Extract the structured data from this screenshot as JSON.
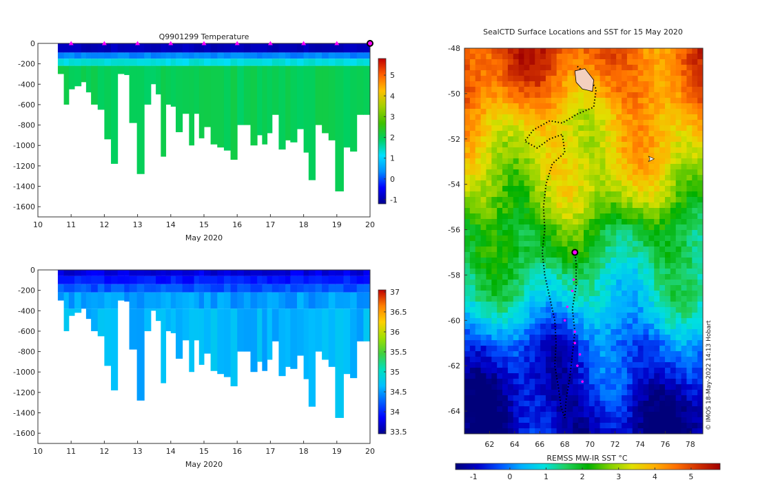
{
  "colors": {
    "jet": [
      "#00008f",
      "#0000ff",
      "#0080ff",
      "#00ffff",
      "#80ff80",
      "#ffff00",
      "#ff8000",
      "#ff0000",
      "#800000"
    ],
    "temp_jet": [
      "#00008f",
      "#0000ff",
      "#0090ff",
      "#00e0ff",
      "#00d060",
      "#40c000",
      "#a0d000",
      "#ffc000",
      "#ff6000",
      "#c00000"
    ],
    "sal_jet": [
      "#00008f",
      "#0000ff",
      "#0060ff",
      "#00c0ff",
      "#00e0c0",
      "#40d040",
      "#a0e000",
      "#ffd000",
      "#ff8000",
      "#c00000"
    ],
    "sst": [
      "#00007a",
      "#0000c8",
      "#0050ff",
      "#00b0ff",
      "#00e0e0",
      "#20d060",
      "#00b000",
      "#80d000",
      "#e0e000",
      "#ffb000",
      "#ff7000",
      "#d03000",
      "#a00000"
    ],
    "marker": "#ff00ff",
    "track": "#000000"
  },
  "chart_data": [
    {
      "type": "heatmap",
      "name": "temperature-section",
      "title": "Q9901299  Temperature",
      "xlabel": "May 2020",
      "ylabel": "",
      "xlim": [
        10,
        20
      ],
      "ylim": [
        -1700,
        0
      ],
      "xticks": [
        10,
        11,
        12,
        13,
        14,
        15,
        16,
        17,
        18,
        19,
        20
      ],
      "yticks": [
        0,
        -200,
        -400,
        -600,
        -800,
        -1000,
        -1200,
        -1400,
        -1600
      ],
      "colorbar": {
        "range": [
          -1.2,
          5.8
        ],
        "ticks": [
          -1,
          0,
          1,
          2,
          3,
          4,
          5
        ]
      },
      "profile_times": [
        10.6,
        10.78,
        10.93,
        11.1,
        11.3,
        11.45,
        11.6,
        11.8,
        12.0,
        12.2,
        12.4,
        12.6,
        12.75,
        12.98,
        13.2,
        13.4,
        13.55,
        13.7,
        13.85,
        14.0,
        14.15,
        14.35,
        14.55,
        14.7,
        14.85,
        15.0,
        15.2,
        15.4,
        15.6,
        15.8,
        16.0,
        16.2,
        16.4,
        16.6,
        16.75,
        16.9,
        17.05,
        17.25,
        17.45,
        17.6,
        17.8,
        18.0,
        18.15,
        18.35,
        18.55,
        18.75,
        18.95,
        19.2,
        19.4,
        19.6,
        19.8,
        20.0
      ],
      "profile_depths": [
        300,
        600,
        450,
        420,
        380,
        480,
        600,
        650,
        940,
        1180,
        300,
        310,
        780,
        1280,
        600,
        400,
        500,
        1110,
        600,
        620,
        870,
        690,
        1000,
        690,
        930,
        820,
        990,
        1020,
        1050,
        1140,
        800,
        800,
        1000,
        900,
        990,
        880,
        700,
        1040,
        950,
        970,
        840,
        1070,
        1340,
        800,
        880,
        950,
        1450,
        1020,
        1060,
        700,
        700,
        690
      ],
      "layers": [
        {
          "from": 0,
          "to": 90,
          "value": -0.9
        },
        {
          "from": 90,
          "to": 150,
          "value": 0.3
        },
        {
          "from": 150,
          "to": 220,
          "value": 1.3
        },
        {
          "from": 220,
          "to": 2000,
          "value": 2.0
        }
      ],
      "surface_markers": [
        11,
        12,
        13,
        14,
        15,
        16,
        17,
        18,
        19
      ],
      "current_marker": 20
    },
    {
      "type": "heatmap",
      "name": "salinity-section",
      "title": "",
      "xlabel": "May 2020",
      "ylabel": "",
      "xlim": [
        10,
        20
      ],
      "ylim": [
        -1700,
        0
      ],
      "xticks": [
        10,
        11,
        12,
        13,
        14,
        15,
        16,
        17,
        18,
        19,
        20
      ],
      "yticks": [
        0,
        -200,
        -400,
        -600,
        -800,
        -1000,
        -1200,
        -1400,
        -1600
      ],
      "colorbar": {
        "range": [
          33.45,
          37.05
        ],
        "ticks": [
          33.5,
          34,
          34.5,
          35,
          35.5,
          36,
          36.5,
          37
        ]
      },
      "layers": [
        {
          "from": 0,
          "to": 60,
          "value": 33.75
        },
        {
          "from": 60,
          "to": 140,
          "value": 33.95
        },
        {
          "from": 140,
          "to": 220,
          "value": 34.2
        },
        {
          "from": 220,
          "to": 380,
          "value": 34.5
        },
        {
          "from": 380,
          "to": 2000,
          "value": 34.62
        }
      ]
    },
    {
      "type": "heatmap",
      "name": "sst-map",
      "title": "SealCTD Surface Locations and SST for 15 May 2020",
      "xlabel": "",
      "ylabel": "",
      "xlim": [
        60,
        79
      ],
      "ylim": [
        -65,
        -48
      ],
      "xticks": [
        62,
        64,
        66,
        68,
        70,
        72,
        74,
        76,
        78
      ],
      "yticks": [
        -48,
        -50,
        -52,
        -54,
        -56,
        -58,
        -60,
        -62,
        -64
      ],
      "colorbar": {
        "label": "REMSS MW-IR SST °C",
        "range": [
          -1.5,
          5.8
        ],
        "ticks": [
          -1,
          0,
          1,
          2,
          3,
          4,
          5
        ]
      },
      "sst_by_latitude": [
        [
          -48,
          4.9
        ],
        [
          -49,
          4.7
        ],
        [
          -50,
          4.4
        ],
        [
          -51,
          3.8
        ],
        [
          -52,
          3.6
        ],
        [
          -53,
          3.4
        ],
        [
          -54,
          3.1
        ],
        [
          -55,
          2.7
        ],
        [
          -56,
          2.0
        ],
        [
          -57,
          1.8
        ],
        [
          -58,
          1.3
        ],
        [
          -59,
          1.0
        ],
        [
          -60,
          0.4
        ],
        [
          -61,
          -0.3
        ],
        [
          -62,
          -0.6
        ],
        [
          -63,
          -0.9
        ],
        [
          -64,
          -1.1
        ],
        [
          -65,
          -1.2
        ]
      ],
      "track": [
        [
          69.0,
          -48.8
        ],
        [
          69.8,
          -49.2
        ],
        [
          70.5,
          -49.8
        ],
        [
          70.3,
          -50.6
        ],
        [
          69.0,
          -50.9
        ],
        [
          67.8,
          -51.3
        ],
        [
          66.8,
          -51.2
        ],
        [
          65.5,
          -51.6
        ],
        [
          64.8,
          -52.1
        ],
        [
          65.8,
          -52.4
        ],
        [
          66.8,
          -52.0
        ],
        [
          67.8,
          -51.8
        ],
        [
          68.0,
          -52.6
        ],
        [
          67.0,
          -53.1
        ],
        [
          66.5,
          -54.0
        ],
        [
          66.3,
          -55.0
        ],
        [
          66.4,
          -56.0
        ],
        [
          66.2,
          -57.0
        ],
        [
          66.4,
          -58.0
        ],
        [
          66.8,
          -59.0
        ],
        [
          67.2,
          -60.0
        ],
        [
          67.3,
          -61.0
        ],
        [
          67.2,
          -62.0
        ],
        [
          67.5,
          -63.0
        ],
        [
          67.7,
          -63.8
        ],
        [
          68.0,
          -64.3
        ],
        [
          68.1,
          -63.5
        ],
        [
          68.4,
          -62.5
        ],
        [
          68.6,
          -61.5
        ],
        [
          68.8,
          -60.5
        ],
        [
          68.6,
          -59.5
        ],
        [
          68.9,
          -58.5
        ],
        [
          68.9,
          -57.5
        ],
        [
          68.8,
          -57.0
        ]
      ],
      "daily_positions": [
        [
          68.7,
          -58.2
        ],
        [
          68.6,
          -58.7
        ],
        [
          68.2,
          -59.4
        ],
        [
          68.0,
          -60.0
        ],
        [
          68.8,
          -60.5
        ],
        [
          68.8,
          -61.0
        ],
        [
          69.2,
          -61.5
        ],
        [
          69.0,
          -62.0
        ],
        [
          69.4,
          -62.7
        ]
      ],
      "current_position": [
        68.8,
        -57.0
      ],
      "cursor_glyph": "➤",
      "side_label": "© IMOS 18-May-2022 14:13 Hobart"
    }
  ]
}
